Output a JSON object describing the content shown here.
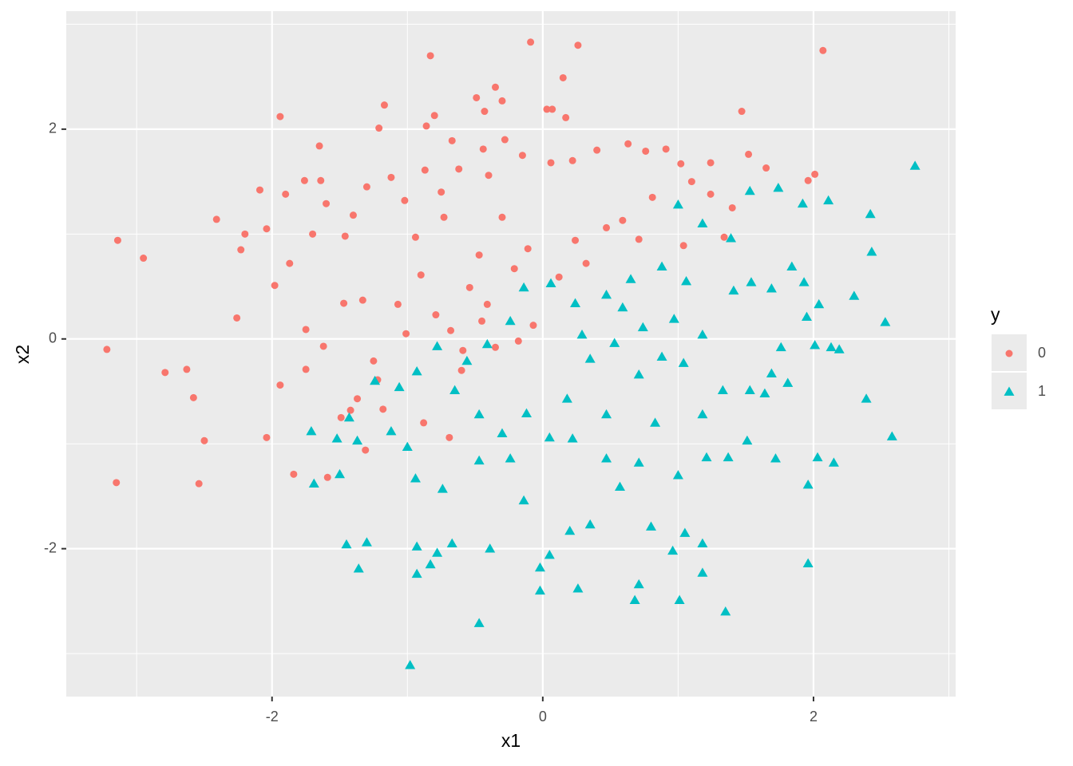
{
  "chart_data": {
    "type": "scatter",
    "x_label": "x1",
    "y_label": "x2",
    "legend_title": "y",
    "legend": "right",
    "xlim": [
      -3.52,
      3.05
    ],
    "ylim": [
      -3.41,
      3.125
    ],
    "xticks": [
      -2,
      0,
      2
    ],
    "yticks": [
      -2,
      0,
      2
    ],
    "x_minor_grid": [
      -3,
      -1,
      1,
      3
    ],
    "y_minor_grid": [
      -3,
      -1,
      1,
      3
    ],
    "grid": true,
    "series": [
      {
        "name": "0",
        "color": "#F8766D",
        "shape": "circle",
        "x": [
          -3.14,
          -3.22,
          -3.15,
          -2.95,
          -2.79,
          -2.63,
          -2.58,
          -2.54,
          -2.5,
          -2.41,
          -2.26,
          -2.23,
          -2.2,
          -2.04,
          -2.09,
          -1.94,
          -1.9,
          -1.98,
          -2.04,
          -1.94,
          -1.84,
          -1.87,
          -1.76,
          -1.65,
          -1.64,
          -1.6,
          -1.7,
          -1.75,
          -1.75,
          -1.59,
          -1.49,
          -1.46,
          -1.4,
          -1.3,
          -1.21,
          -1.17,
          -1.33,
          -1.25,
          -1.12,
          -1.02,
          -1.07,
          -1.01,
          -0.87,
          -0.83,
          -0.86,
          -0.8,
          -0.75,
          -0.94,
          -0.9,
          -0.73,
          -0.67,
          -0.62,
          -0.49,
          -0.43,
          -0.35,
          -0.3,
          -0.28,
          -0.44,
          -0.4,
          -0.3,
          -0.47,
          -0.54,
          -0.41,
          -0.15,
          -0.09,
          0.03,
          0.07,
          0.15,
          0.17,
          0.26,
          0.06,
          0.22,
          0.4,
          0.63,
          0.76,
          0.91,
          0.81,
          1.02,
          1.1,
          1.24,
          1.47,
          1.52,
          1.65,
          2.07,
          2.01,
          1.96,
          1.24,
          1.4,
          1.34,
          1.04,
          0.71,
          0.59,
          0.47,
          0.24,
          0.32,
          0.12,
          -0.07,
          -0.18,
          -0.35,
          -0.59,
          -0.6,
          -0.69,
          -0.88,
          -1.22,
          -1.18,
          -1.37,
          -1.31,
          -1.42,
          -1.62,
          -1.47,
          -0.68,
          -0.79,
          -0.45,
          -0.21,
          -0.11
        ],
        "y": [
          0.94,
          -0.1,
          -1.37,
          0.77,
          -0.32,
          -0.29,
          -0.56,
          -1.38,
          -0.97,
          1.14,
          0.2,
          0.85,
          1.0,
          1.05,
          1.42,
          2.12,
          1.38,
          0.51,
          -0.94,
          -0.44,
          -1.29,
          0.72,
          1.51,
          1.84,
          1.51,
          1.29,
          1.0,
          0.09,
          -0.29,
          -1.32,
          -0.75,
          0.98,
          1.18,
          1.45,
          2.01,
          2.23,
          0.37,
          -0.21,
          1.54,
          1.32,
          0.33,
          0.05,
          1.61,
          2.7,
          2.03,
          2.13,
          1.4,
          0.97,
          0.61,
          1.16,
          1.89,
          1.62,
          2.3,
          2.17,
          2.4,
          2.27,
          1.9,
          1.81,
          1.56,
          1.16,
          0.8,
          0.49,
          0.33,
          1.75,
          2.83,
          2.19,
          2.19,
          2.49,
          2.11,
          2.8,
          1.68,
          1.7,
          1.8,
          1.86,
          1.79,
          1.81,
          1.35,
          1.67,
          1.5,
          1.68,
          2.17,
          1.76,
          1.63,
          2.75,
          1.57,
          1.51,
          1.38,
          1.25,
          0.97,
          0.89,
          0.95,
          1.13,
          1.06,
          0.94,
          0.72,
          0.59,
          0.13,
          -0.02,
          -0.08,
          -0.11,
          -0.3,
          -0.94,
          -0.8,
          -0.39,
          -0.67,
          -0.57,
          -1.06,
          -0.68,
          -0.07,
          0.34,
          0.08,
          0.23,
          0.17,
          0.67,
          0.86
        ]
      },
      {
        "name": "1",
        "color": "#00BFC4",
        "shape": "triangle",
        "x": [
          2.42,
          2.75,
          2.43,
          2.3,
          2.53,
          2.19,
          2.39,
          2.58,
          2.15,
          2.03,
          1.96,
          1.96,
          2.11,
          1.92,
          1.74,
          1.53,
          1.0,
          1.18,
          1.39,
          1.84,
          1.69,
          1.54,
          1.41,
          1.06,
          0.88,
          0.65,
          0.47,
          0.24,
          0.06,
          -0.14,
          -0.24,
          -0.41,
          -0.56,
          -0.78,
          -0.93,
          -1.06,
          -1.24,
          -1.12,
          -1.43,
          -1.52,
          -1.71,
          -1.69,
          -1.5,
          -1.37,
          -1.36,
          -1.3,
          -1.45,
          -0.93,
          -0.93,
          -0.98,
          -0.83,
          -0.78,
          -0.47,
          -0.67,
          -0.39,
          -0.02,
          -0.02,
          0.26,
          0.2,
          0.05,
          -0.14,
          -0.24,
          -0.47,
          -0.74,
          -1.0,
          -0.94,
          0.35,
          0.68,
          0.71,
          1.01,
          1.35,
          1.18,
          1.18,
          1.05,
          0.96,
          0.8,
          0.57,
          0.71,
          1.0,
          1.21,
          1.37,
          1.51,
          1.72,
          1.64,
          1.53,
          1.33,
          1.18,
          1.04,
          0.88,
          0.71,
          0.53,
          0.35,
          0.18,
          0.05,
          -0.12,
          -0.3,
          -0.47,
          -0.65,
          0.22,
          0.47,
          0.83,
          0.47,
          2.13,
          2.01,
          1.95,
          1.76,
          1.69,
          1.81,
          1.93,
          2.04,
          1.18,
          0.97,
          0.74,
          0.59,
          0.29
        ],
        "y": [
          1.19,
          1.65,
          0.83,
          0.41,
          0.16,
          -0.1,
          -0.57,
          -0.93,
          -1.18,
          -1.13,
          -1.39,
          -2.14,
          1.32,
          1.29,
          1.44,
          1.41,
          1.28,
          1.1,
          0.96,
          0.69,
          0.48,
          0.54,
          0.46,
          0.55,
          0.69,
          0.57,
          0.42,
          0.34,
          0.53,
          0.49,
          0.17,
          -0.05,
          -0.21,
          -0.07,
          -0.31,
          -0.46,
          -0.4,
          -0.88,
          -0.75,
          -0.95,
          -0.88,
          -1.38,
          -1.29,
          -0.97,
          -2.19,
          -1.94,
          -1.96,
          -1.98,
          -2.24,
          -3.11,
          -2.15,
          -2.04,
          -2.71,
          -1.95,
          -2.0,
          -2.18,
          -2.4,
          -2.38,
          -1.83,
          -2.06,
          -1.54,
          -1.14,
          -1.16,
          -1.43,
          -1.03,
          -1.33,
          -1.77,
          -2.49,
          -2.34,
          -2.49,
          -2.6,
          -2.23,
          -1.95,
          -1.85,
          -2.02,
          -1.79,
          -1.41,
          -1.18,
          -1.3,
          -1.13,
          -1.13,
          -0.97,
          -1.14,
          -0.52,
          -0.49,
          -0.49,
          -0.72,
          -0.23,
          -0.17,
          -0.34,
          -0.04,
          -0.19,
          -0.57,
          -0.94,
          -0.71,
          -0.9,
          -0.72,
          -0.49,
          -0.95,
          -1.14,
          -0.8,
          -0.72,
          -0.08,
          -0.06,
          0.21,
          -0.08,
          -0.33,
          -0.42,
          0.54,
          0.33,
          0.04,
          0.19,
          0.11,
          0.3,
          0.04
        ]
      }
    ]
  }
}
